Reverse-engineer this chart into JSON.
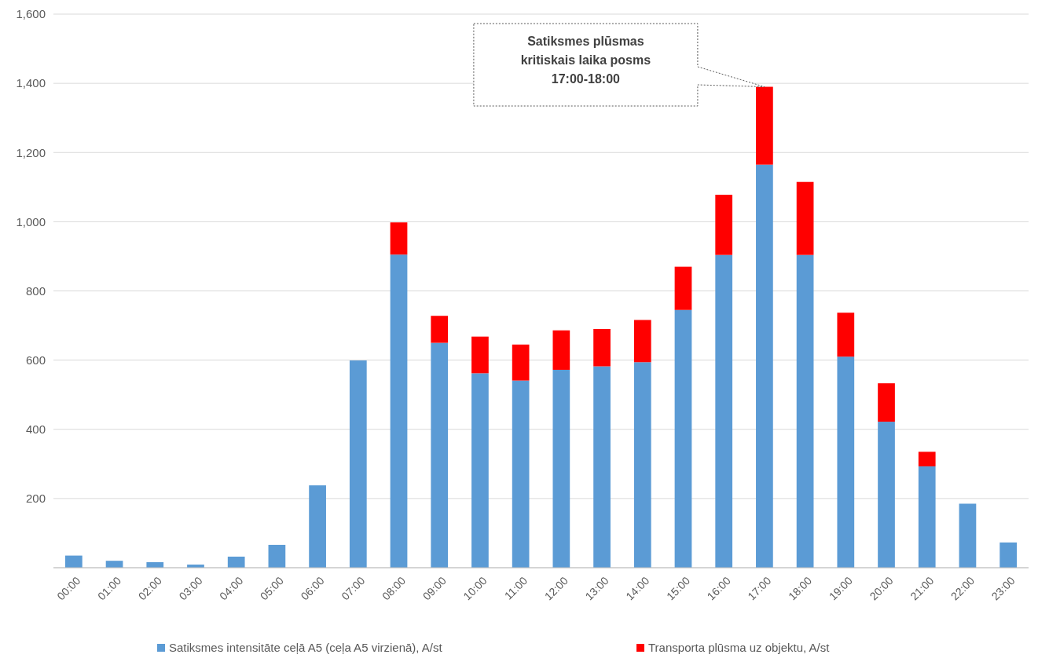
{
  "chart_data": {
    "type": "bar",
    "stacked": true,
    "categories": [
      "00:00",
      "01:00",
      "02:00",
      "03:00",
      "04:00",
      "05:00",
      "06:00",
      "07:00",
      "08:00",
      "09:00",
      "10:00",
      "11:00",
      "12:00",
      "13:00",
      "14:00",
      "15:00",
      "16:00",
      "17:00",
      "18:00",
      "19:00",
      "20:00",
      "21:00",
      "22:00",
      "23:00"
    ],
    "series": [
      {
        "name": "Satiksmes intensitāte ceļā A5 (ceļa A5 virzienā), A/st",
        "color": "#5b9bd5",
        "values": [
          35,
          20,
          16,
          9,
          32,
          66,
          238,
          599,
          905,
          650,
          562,
          541,
          572,
          582,
          594,
          745,
          904,
          1165,
          904,
          610,
          422,
          293,
          185,
          73
        ]
      },
      {
        "name": "Transporta plūsma uz objektu, A/st",
        "color": "#ff0000",
        "values": [
          null,
          null,
          null,
          null,
          null,
          null,
          null,
          null,
          93,
          78,
          106,
          104,
          114,
          108,
          122,
          125,
          174,
          225,
          211,
          127,
          111,
          42,
          null,
          null
        ]
      }
    ],
    "ylim": [
      0,
      1600
    ],
    "yticks": [
      {
        "value": 0,
        "label": null
      },
      {
        "value": 200,
        "label": "200"
      },
      {
        "value": 400,
        "label": "400"
      },
      {
        "value": 600,
        "label": "600"
      },
      {
        "value": 800,
        "label": "800"
      },
      {
        "value": 1000,
        "label": "1,000"
      },
      {
        "value": 1200,
        "label": "1,200"
      },
      {
        "value": 1400,
        "label": "1,400"
      },
      {
        "value": 1600,
        "label": "1,600"
      }
    ],
    "grid": "y",
    "legend": "bottom",
    "annotations": [
      "Satiksmes plūsmas\nkritiskais laika posms\n17:00-18:00"
    ]
  }
}
